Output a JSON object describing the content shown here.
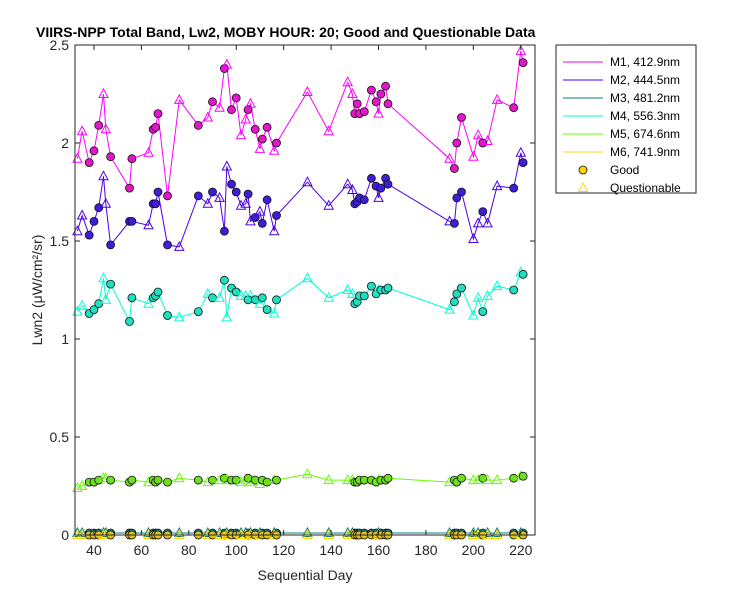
{
  "chart_data": {
    "type": "line",
    "title": "VIIRS-NPP Total Band, Lw2, MOBY HOUR: 20;  Good and Questionable Data",
    "xlabel": "Sequential Day",
    "ylabel": "Lwn2 (μW/cm²/sr)",
    "xlim": [
      32,
      226
    ],
    "ylim": [
      0,
      2.5
    ],
    "xticks": [
      40,
      60,
      80,
      100,
      120,
      140,
      160,
      180,
      200,
      220
    ],
    "yticks": [
      0,
      0.5,
      1,
      1.5,
      2,
      2.5
    ],
    "ytick_labels": [
      "0",
      "0.5",
      "1",
      "1.5",
      "2",
      "2.5"
    ],
    "grid": false,
    "legend_position": "outside-top-right",
    "legend": [
      {
        "label": "M1, 412.9nm",
        "kind": "line",
        "color": "#ff00ff"
      },
      {
        "label": "M2, 444.5nm",
        "kind": "line",
        "color": "#4b00e6"
      },
      {
        "label": "M3, 481.2nm",
        "kind": "line",
        "color": "#008080"
      },
      {
        "label": "M4, 556.3nm",
        "kind": "line",
        "color": "#00ffd5"
      },
      {
        "label": "M5, 674.6nm",
        "kind": "line",
        "color": "#66ff00"
      },
      {
        "label": "M6, 741.9nm",
        "kind": "line",
        "color": "#ffd700"
      },
      {
        "label": "Good",
        "kind": "circle",
        "color": "#ffd700"
      },
      {
        "label": "Questionable",
        "kind": "triangle",
        "color": "#ffd700"
      }
    ],
    "x": [
      33,
      35,
      38,
      40,
      42,
      44,
      45,
      47,
      55,
      56,
      63,
      65,
      66,
      67,
      71,
      76,
      84,
      88,
      90,
      93,
      95,
      96,
      98,
      100,
      102,
      104,
      105,
      106,
      108,
      110,
      111,
      113,
      116,
      117,
      130,
      139,
      147,
      149,
      150,
      151,
      152,
      154,
      157,
      159,
      160,
      161,
      163,
      164,
      190,
      192,
      193,
      195,
      200,
      202,
      204,
      206,
      210,
      217,
      220,
      221
    ],
    "quality": [
      "Q",
      "Q",
      "G",
      "G",
      "G",
      "Q",
      "Q",
      "G",
      "G",
      "G",
      "Q",
      "G",
      "G",
      "G",
      "G",
      "Q",
      "G",
      "Q",
      "G",
      "Q",
      "G",
      "Q",
      "G",
      "G",
      "Q",
      "Q",
      "G",
      "Q",
      "G",
      "Q",
      "G",
      "G",
      "Q",
      "G",
      "Q",
      "Q",
      "Q",
      "Q",
      "G",
      "G",
      "G",
      "G",
      "G",
      "G",
      "Q",
      "G",
      "G",
      "G",
      "Q",
      "G",
      "G",
      "G",
      "Q",
      "Q",
      "G",
      "Q",
      "Q",
      "G",
      "Q",
      "G"
    ],
    "series": [
      {
        "name": "M1, 412.9nm",
        "color": "#ff00ff",
        "fill": "#e018c8",
        "values": [
          1.92,
          2.06,
          1.9,
          1.96,
          2.09,
          2.25,
          2.07,
          1.93,
          1.77,
          1.92,
          1.95,
          2.07,
          2.08,
          2.15,
          1.73,
          2.22,
          2.09,
          2.13,
          2.21,
          2.18,
          2.38,
          2.4,
          2.17,
          2.23,
          2.04,
          2.12,
          2.17,
          2.2,
          2.07,
          1.97,
          2.02,
          2.08,
          1.96,
          2.0,
          2.26,
          2.06,
          2.31,
          2.25,
          2.15,
          2.2,
          2.15,
          2.16,
          2.27,
          2.21,
          2.15,
          2.25,
          2.29,
          2.2,
          1.92,
          1.87,
          2.0,
          2.13,
          1.93,
          2.04,
          2.0,
          2.01,
          2.22,
          2.18,
          2.47,
          2.41
        ]
      },
      {
        "name": "M2, 444.5nm",
        "color": "#4b00e6",
        "fill": "#3c1fd6",
        "values": [
          1.55,
          1.63,
          1.53,
          1.6,
          1.67,
          1.83,
          1.69,
          1.48,
          1.6,
          1.6,
          1.58,
          1.69,
          1.69,
          1.75,
          1.48,
          1.47,
          1.73,
          1.69,
          1.75,
          1.72,
          1.55,
          1.88,
          1.79,
          1.75,
          1.68,
          1.69,
          1.74,
          1.6,
          1.62,
          1.65,
          1.59,
          1.71,
          1.55,
          1.63,
          1.8,
          1.68,
          1.79,
          1.76,
          1.69,
          1.7,
          1.72,
          1.71,
          1.82,
          1.78,
          1.72,
          1.77,
          1.82,
          1.79,
          1.6,
          1.59,
          1.72,
          1.75,
          1.51,
          1.59,
          1.65,
          1.59,
          1.78,
          1.77,
          1.95,
          1.9
        ]
      },
      {
        "name": "M3, 481.2nm",
        "color": "#008080",
        "values": [
          0.01,
          0.01,
          0.01,
          0.01,
          0.01,
          0.01,
          0.01,
          0.01,
          0.01,
          0.01,
          0.01,
          0.01,
          0.01,
          0.01,
          0.01,
          0.01,
          0.01,
          0.01,
          0.01,
          0.01,
          0.01,
          0.01,
          0.01,
          0.01,
          0.01,
          0.01,
          0.01,
          0.01,
          0.01,
          0.01,
          0.01,
          0.01,
          0.01,
          0.01,
          0.01,
          0.01,
          0.01,
          0.01,
          0.01,
          0.01,
          0.01,
          0.01,
          0.01,
          0.01,
          0.01,
          0.01,
          0.01,
          0.01,
          0.01,
          0.01,
          0.01,
          0.01,
          0.01,
          0.01,
          0.01,
          0.01,
          0.01,
          0.01,
          0.01,
          0.01
        ]
      },
      {
        "name": "M4, 556.3nm",
        "color": "#00ffd5",
        "values": [
          1.14,
          1.17,
          1.13,
          1.15,
          1.18,
          1.31,
          1.2,
          1.28,
          1.09,
          1.21,
          1.18,
          1.21,
          1.22,
          1.24,
          1.12,
          1.11,
          1.14,
          1.23,
          1.21,
          1.21,
          1.3,
          1.11,
          1.26,
          1.24,
          1.22,
          1.22,
          1.2,
          1.22,
          1.2,
          1.18,
          1.21,
          1.15,
          1.13,
          1.2,
          1.31,
          1.21,
          1.25,
          1.23,
          1.18,
          1.19,
          1.22,
          1.22,
          1.27,
          1.23,
          1.25,
          1.25,
          1.25,
          1.26,
          1.15,
          1.19,
          1.23,
          1.26,
          1.12,
          1.21,
          1.14,
          1.22,
          1.27,
          1.25,
          1.34,
          1.33
        ]
      },
      {
        "name": "M5, 674.6nm",
        "color": "#66ff00",
        "values": [
          0.24,
          0.25,
          0.27,
          0.27,
          0.28,
          0.29,
          0.29,
          0.28,
          0.27,
          0.28,
          0.27,
          0.28,
          0.27,
          0.28,
          0.27,
          0.29,
          0.28,
          0.27,
          0.28,
          0.28,
          0.29,
          0.28,
          0.28,
          0.28,
          0.27,
          0.28,
          0.29,
          0.27,
          0.28,
          0.26,
          0.28,
          0.27,
          0.28,
          0.28,
          0.31,
          0.28,
          0.28,
          0.28,
          0.27,
          0.27,
          0.28,
          0.28,
          0.28,
          0.27,
          0.28,
          0.28,
          0.28,
          0.29,
          0.27,
          0.28,
          0.27,
          0.29,
          0.28,
          0.28,
          0.29,
          0.28,
          0.28,
          0.29,
          0.3,
          0.3
        ]
      },
      {
        "name": "M6, 741.9nm",
        "color": "#ffd700",
        "values": [
          0.0,
          0.0,
          0.0,
          0.0,
          0.0,
          0.0,
          0.0,
          0.0,
          0.0,
          0.0,
          0.0,
          0.0,
          0.0,
          0.0,
          0.0,
          0.0,
          0.0,
          0.0,
          0.0,
          0.0,
          0.0,
          0.0,
          0.0,
          0.0,
          0.0,
          0.0,
          0.0,
          0.0,
          0.0,
          0.0,
          0.0,
          0.0,
          0.0,
          0.0,
          0.0,
          0.0,
          0.0,
          0.0,
          0.0,
          0.0,
          0.0,
          0.0,
          0.0,
          0.0,
          0.0,
          0.0,
          0.0,
          0.0,
          0.0,
          0.0,
          0.0,
          0.0,
          0.0,
          0.0,
          0.0,
          0.0,
          0.0,
          0.0,
          0.0,
          0.0
        ]
      }
    ]
  }
}
